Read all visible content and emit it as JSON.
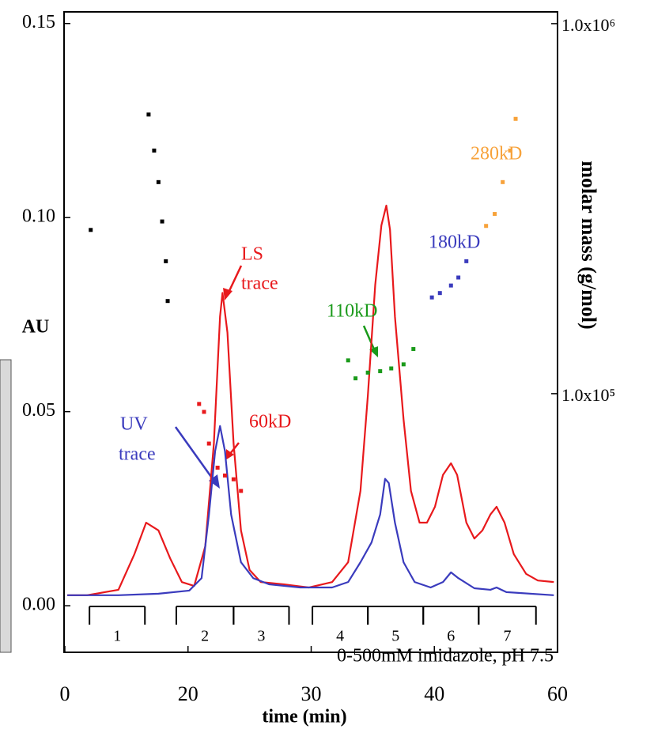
{
  "chart_data": {
    "type": "line",
    "xlabel": "time (min)",
    "ylabel": "AU",
    "y2label": "molar mass (g/mol)",
    "xlim": [
      0,
      60
    ],
    "xticks": [
      0,
      20,
      30,
      40,
      60
    ],
    "ylim": [
      -0.012,
      0.153
    ],
    "yticks": [
      {
        "value": 0,
        "label": "0.00"
      },
      0.05,
      {
        "value": 0.1,
        "label": "0.10"
      },
      0.15
    ],
    "y2lim": [
      20000,
      1076000
    ],
    "y2ticks": [
      {
        "value": 1000000,
        "label": "1.0x10⁶"
      },
      {
        "value": 100000,
        "label": "1.0x10⁵"
      }
    ],
    "y2scale": "log",
    "series": [
      {
        "color": "#e8191c",
        "style": "line",
        "x": [
          0.4,
          3.6,
          8.7,
          11.3,
          13.2,
          15.2,
          17.1,
          19.0,
          20.5,
          21.4,
          22.1,
          22.6,
          22.8,
          23.2,
          23.7,
          24.3,
          25.0,
          25.9,
          27.8,
          29.8,
          31.7,
          33.0,
          34.0,
          34.6,
          35.2,
          35.7,
          36.1,
          36.4,
          36.8,
          37.5,
          38.1,
          38.8,
          39.4,
          40.1,
          41.4,
          42.7,
          43.7,
          45.2,
          46.5,
          47.8,
          49.1,
          50.1,
          51.4,
          52.9,
          54.9,
          56.8,
          59.4
        ],
        "values": [
          0.0027,
          0.0027,
          0.0041,
          0.0133,
          0.0214,
          0.0194,
          0.0122,
          0.0061,
          0.0051,
          0.0153,
          0.0418,
          0.0745,
          0.0806,
          0.0704,
          0.0418,
          0.0194,
          0.0092,
          0.0061,
          0.0055,
          0.0047,
          0.0061,
          0.0112,
          0.0296,
          0.0541,
          0.0827,
          0.098,
          0.1031,
          0.0969,
          0.0745,
          0.048,
          0.0296,
          0.0214,
          0.0214,
          0.0255,
          0.0337,
          0.0367,
          0.0337,
          0.0214,
          0.0173,
          0.0194,
          0.0235,
          0.0255,
          0.0214,
          0.0133,
          0.0082,
          0.0065,
          0.0061
        ]
      },
      {
        "color": "#3a3bbd",
        "style": "line",
        "x": [
          0.4,
          8.7,
          15.2,
          20.1,
          21.1,
          21.7,
          22.2,
          22.6,
          23.0,
          23.5,
          24.3,
          25.3,
          26.6,
          29.1,
          31.7,
          33.0,
          34.0,
          34.9,
          35.6,
          36.0,
          36.3,
          36.8,
          37.5,
          38.4,
          39.7,
          41.4,
          42.7,
          43.9,
          46.5,
          49.1,
          50.1,
          51.7,
          59.4
        ],
        "values": [
          0.0027,
          0.0027,
          0.0031,
          0.0039,
          0.0071,
          0.0235,
          0.0398,
          0.0463,
          0.0398,
          0.0235,
          0.0112,
          0.0071,
          0.0055,
          0.0047,
          0.0047,
          0.0061,
          0.0112,
          0.0163,
          0.0235,
          0.0327,
          0.0316,
          0.0214,
          0.0112,
          0.0061,
          0.0047,
          0.0061,
          0.0086,
          0.0071,
          0.0045,
          0.0041,
          0.0047,
          0.0035,
          0.0027
        ]
      },
      {
        "color": "#000000",
        "style": "points",
        "axis": "y2",
        "x": [
          4.2,
          13.6,
          14.5,
          15.2,
          15.8,
          16.4,
          16.7
        ],
        "values": [
          277000,
          568000,
          454000,
          373000,
          292000,
          228000,
          178000
        ]
      },
      {
        "name": "60kD",
        "color": "#e8191c",
        "style": "points",
        "axis": "y2",
        "x": [
          20.9,
          21.3,
          21.7,
          22.4,
          23.0,
          23.7,
          24.3
        ],
        "values": [
          93800,
          89300,
          73300,
          63100,
          60100,
          58700,
          54600
        ]
      },
      {
        "name": "110kD",
        "color": "#1a9a1a",
        "style": "points",
        "axis": "y2",
        "x": [
          33.0,
          33.6,
          34.6,
          35.6,
          36.5,
          37.5,
          38.3
        ],
        "values": [
          123000,
          110000,
          114000,
          115000,
          117000,
          120000,
          132000
        ]
      },
      {
        "name": "180kD",
        "color": "#3a3bbd",
        "style": "points",
        "axis": "y2",
        "x": [
          39.8,
          40.9,
          42.7,
          43.9,
          45.2
        ],
        "values": [
          182000,
          187000,
          196000,
          206000,
          228000
        ]
      },
      {
        "name": "280kD",
        "color": "#f7a23a",
        "style": "points",
        "axis": "y2",
        "x": [
          48.4,
          49.8,
          51.1,
          52.3,
          53.2
        ],
        "values": [
          284000,
          306000,
          373000,
          454000,
          553000
        ]
      }
    ],
    "annotations": [
      {
        "text": "LS",
        "color": "#e8191c"
      },
      {
        "text": "trace",
        "color": "#e8191c"
      },
      {
        "text": "UV",
        "color": "#3a3bbd"
      },
      {
        "text": "trace",
        "color": "#3a3bbd"
      }
    ],
    "fractions": [
      {
        "label": "1",
        "start": 4.0,
        "end": 13.0
      },
      {
        "label": "2",
        "start": 18.1,
        "end": 23.7
      },
      {
        "label": "3",
        "start": 23.7,
        "end": 28.2
      },
      {
        "label": "4",
        "start": 30.1,
        "end": 34.6
      },
      {
        "label": "5",
        "start": 34.6,
        "end": 39.1
      },
      {
        "label": "6",
        "start": 39.1,
        "end": 47.2
      },
      {
        "label": "7",
        "start": 47.2,
        "end": 56.5
      }
    ],
    "fraction_note": "0-500mM imidazole, pH 7.5"
  }
}
